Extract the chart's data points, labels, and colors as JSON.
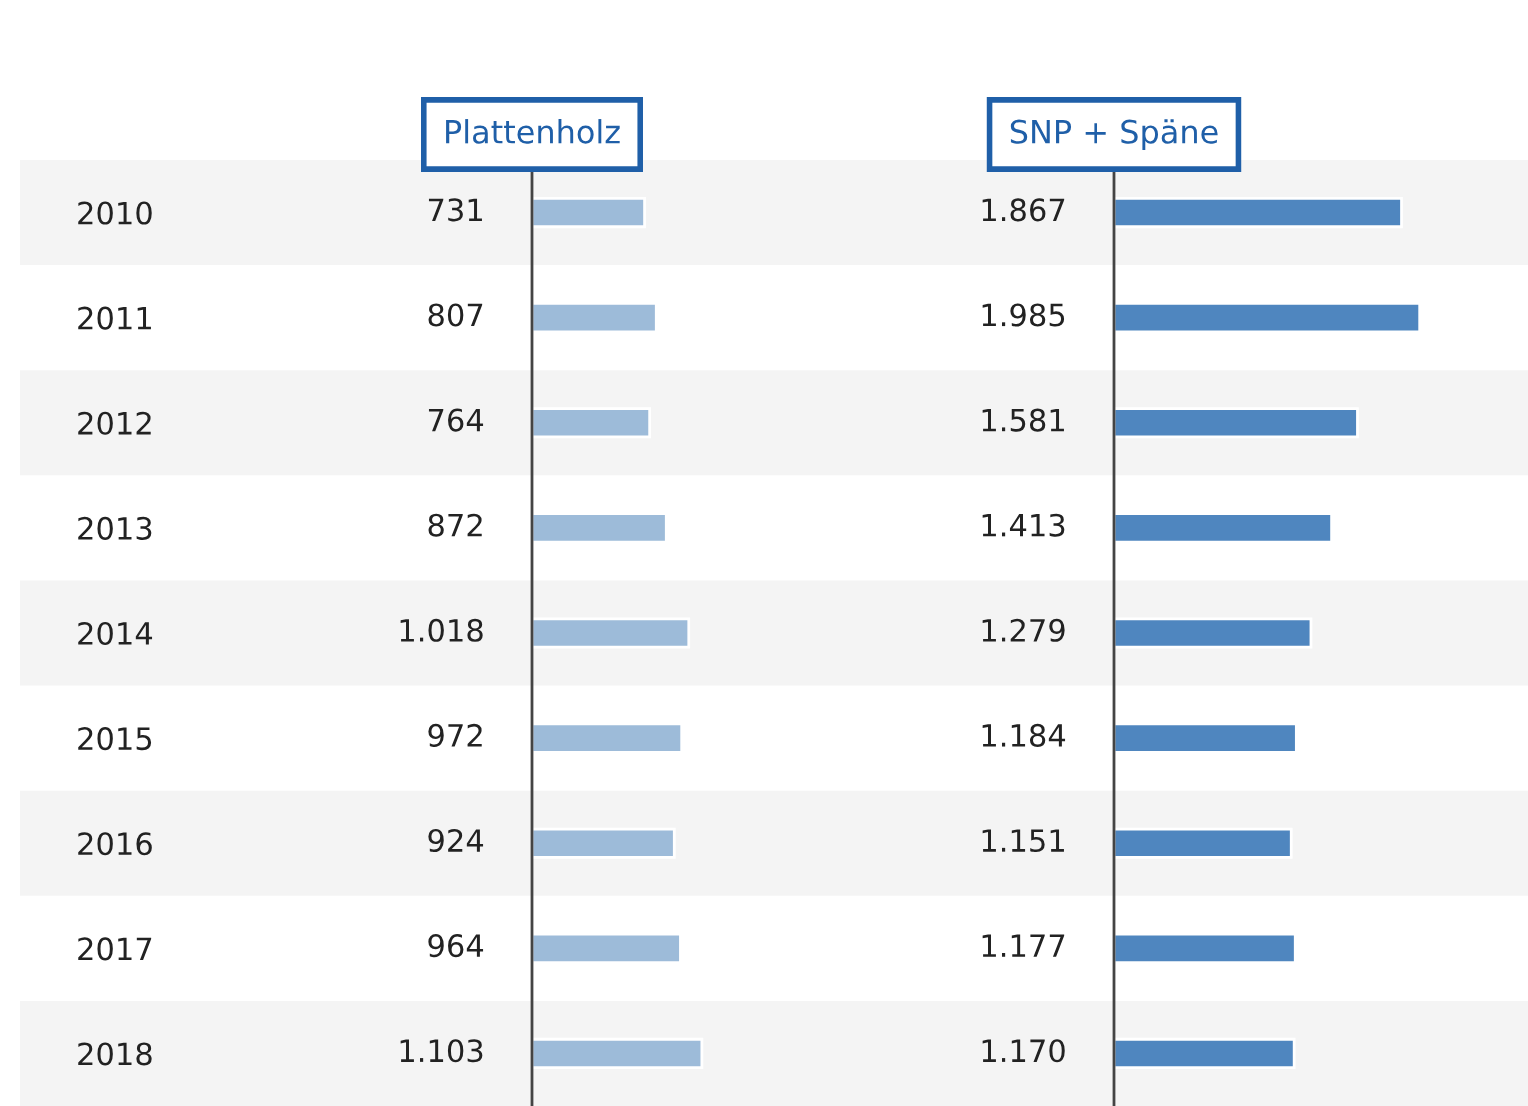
{
  "chart_data": [
    {
      "type": "bar",
      "orientation": "horizontal",
      "title": "Plattenholz",
      "categories": [
        "2010",
        "2011",
        "2012",
        "2013",
        "2014",
        "2015",
        "2016",
        "2017",
        "2018"
      ],
      "tick_labels": "y",
      "color": "#9dbbd9",
      "values": [
        731,
        807,
        764,
        872,
        1018,
        972,
        924,
        964,
        1103
      ],
      "value_labels": [
        "731",
        "807",
        "764",
        "872",
        "1.018",
        "972",
        "924",
        "964",
        "1.103"
      ]
    },
    {
      "type": "bar",
      "orientation": "horizontal",
      "title": "SNP + Späne",
      "categories": [
        "2010",
        "2011",
        "2012",
        "2013",
        "2014",
        "2015",
        "2016",
        "2017",
        "2018"
      ],
      "tick_labels": false,
      "color": "#4f86bf",
      "values": [
        1867,
        1985,
        1581,
        1413,
        1279,
        1184,
        1151,
        1177,
        1170
      ],
      "value_labels": [
        "1.867",
        "1.985",
        "1.581",
        "1.413",
        "1.279",
        "1.184",
        "1.151",
        "1.177",
        "1.170"
      ]
    }
  ]
}
